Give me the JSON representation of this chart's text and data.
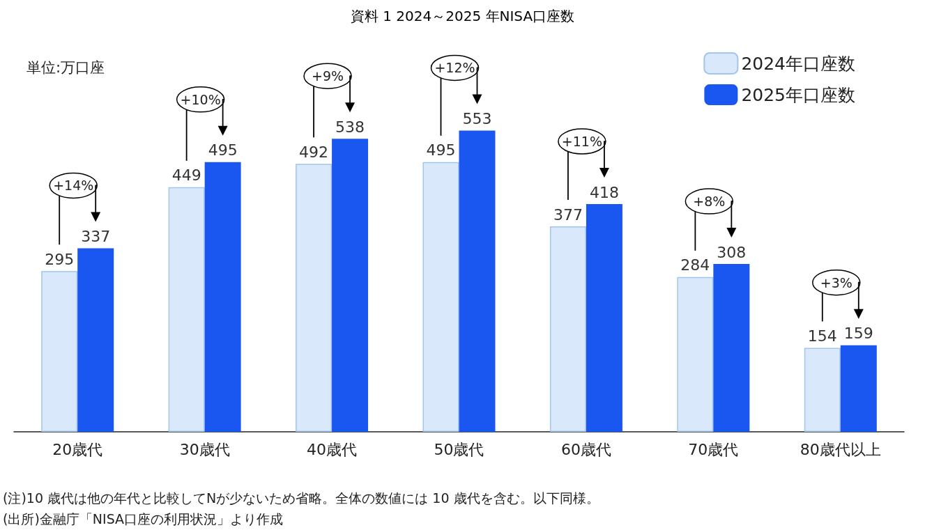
{
  "chart_data": {
    "type": "bar",
    "title": "資料 1 2024～2025 年NISA口座数",
    "categories": [
      "20歳代",
      "30歳代",
      "40歳代",
      "50歳代",
      "60歳代",
      "70歳代",
      "80歳代以上"
    ],
    "series": [
      {
        "name": "2024年口座数",
        "color": "#dae8fc",
        "values": [
          295,
          449,
          492,
          495,
          377,
          284,
          154
        ]
      },
      {
        "name": "2025年口座数",
        "color": "#1a56f0",
        "values": [
          337,
          495,
          538,
          553,
          418,
          308,
          159
        ]
      }
    ],
    "data_labels": true,
    "legend": "top right",
    "annotations": [
      "単位:万口座",
      "+14%",
      "+10%",
      "+9%",
      "+12%",
      "+11%",
      "+8%",
      "+3%",
      "(注)10 歳代は他の年代と比較してNが少ないため省略。全体の数値には 10 歳代を含む。以下同様。",
      "(出所)金融庁「NISA口座の利用状況」より作成"
    ]
  }
}
